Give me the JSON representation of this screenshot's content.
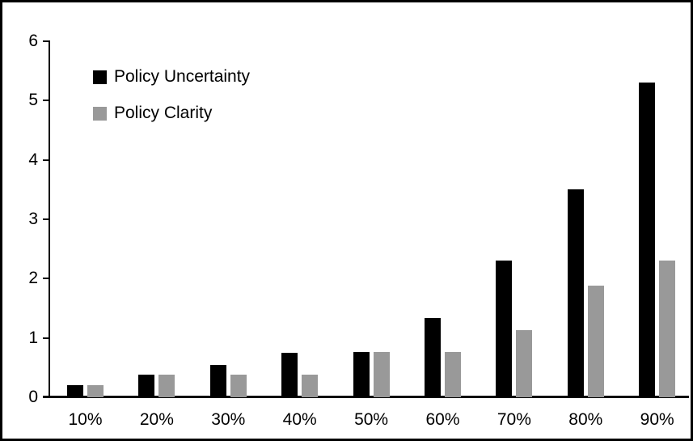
{
  "chart_data": {
    "type": "bar",
    "title": "",
    "xlabel": "",
    "ylabel": "",
    "categories": [
      "10%",
      "20%",
      "30%",
      "40%",
      "50%",
      "60%",
      "70%",
      "80%",
      "90%"
    ],
    "series": [
      {
        "name": "Policy Uncertainty",
        "color": "#000000",
        "values": [
          0.2,
          0.38,
          0.55,
          0.75,
          0.77,
          1.33,
          2.3,
          3.5,
          5.3
        ]
      },
      {
        "name": "Policy Clarity",
        "color": "#999999",
        "values": [
          0.2,
          0.38,
          0.38,
          0.38,
          0.77,
          0.77,
          1.13,
          1.88,
          2.3
        ]
      }
    ],
    "ylim": [
      0,
      6
    ],
    "yticks": [
      0,
      1,
      2,
      3,
      4,
      5,
      6
    ],
    "grid": false,
    "legend_position": "top-left"
  }
}
